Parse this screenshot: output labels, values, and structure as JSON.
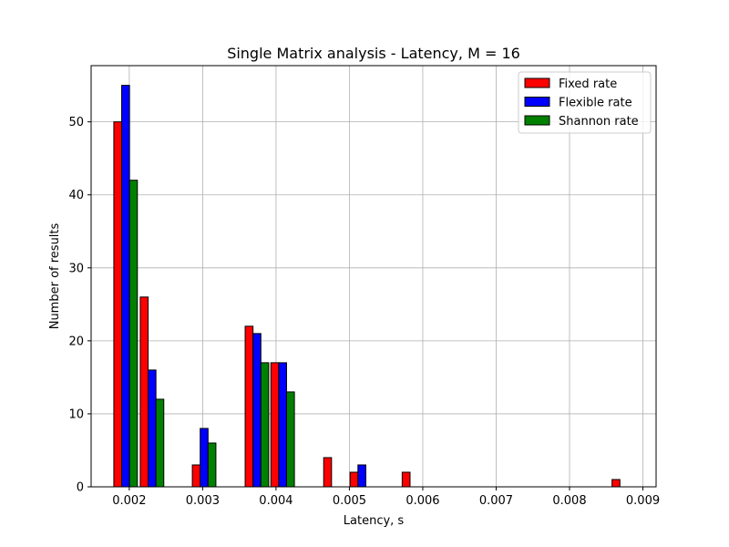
{
  "chart_data": {
    "type": "bar",
    "title": "Single Matrix analysis - Latency, M = 16",
    "xlabel": "Latency, s",
    "ylabel": "Number of results",
    "xlim": [
      0.00148,
      0.00918
    ],
    "ylim": [
      0,
      57.7
    ],
    "xticks": [
      0.002,
      0.003,
      0.004,
      0.005,
      0.006,
      0.007,
      0.008,
      0.009
    ],
    "xtick_labels": [
      "0.002",
      "0.003",
      "0.004",
      "0.005",
      "0.006",
      "0.007",
      "0.008",
      "0.009"
    ],
    "yticks": [
      0,
      10,
      20,
      30,
      40,
      50
    ],
    "ytick_labels": [
      "0",
      "10",
      "20",
      "30",
      "40",
      "50"
    ],
    "grid": true,
    "legend_position": "top-right",
    "x": [
      0.00195,
      0.00231,
      0.00302,
      0.00374,
      0.00409,
      0.00481,
      0.00517,
      0.00588,
      0.00659,
      0.00731,
      0.00802,
      0.00874
    ],
    "bar_width": 0.000107,
    "series": [
      {
        "name": "Fixed rate",
        "color": "#ff0000",
        "values": [
          50,
          26,
          3,
          22,
          17,
          4,
          2,
          2,
          0,
          0,
          0,
          1
        ]
      },
      {
        "name": "Flexible rate",
        "color": "#0000ff",
        "values": [
          55,
          16,
          8,
          21,
          17,
          0,
          3,
          0,
          0,
          0,
          0,
          0
        ]
      },
      {
        "name": "Shannon rate",
        "color": "#008000",
        "values": [
          42,
          12,
          6,
          17,
          13,
          0,
          0,
          0,
          0,
          0,
          0,
          0
        ]
      }
    ]
  }
}
